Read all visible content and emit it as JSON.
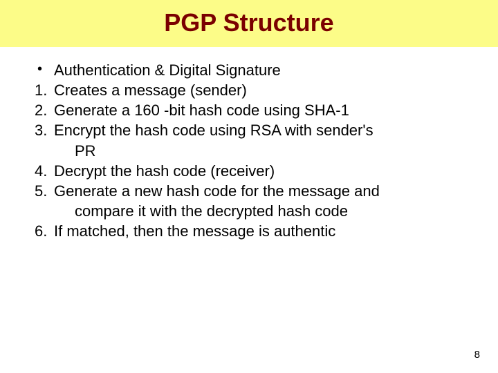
{
  "title": {
    "text": "PGP Structure",
    "color": "#7a0000",
    "background": "#fcfc88",
    "fontsize_pt": 36
  },
  "body": {
    "font_color": "#000000",
    "fontsize_pt": 22,
    "items": [
      {
        "marker": "•",
        "text": "Authentication & Digital Signature",
        "is_bullet": true
      },
      {
        "marker": "1.",
        "text": "Creates a message (sender)"
      },
      {
        "marker": "2.",
        "text": "Generate a 160 -bit hash code using SHA-1"
      },
      {
        "marker": "3.",
        "text": "Encrypt the hash code using RSA with sender's"
      },
      {
        "marker": "",
        "text": "PR",
        "cont": true
      },
      {
        "marker": "4.",
        "text": "Decrypt the hash code (receiver)"
      },
      {
        "marker": "5.",
        "text": "Generate a new hash code for the message and"
      },
      {
        "marker": "",
        "text": "compare it with the decrypted hash code",
        "cont": true
      },
      {
        "marker": "6.",
        "text": "If matched, then the message is authentic"
      }
    ]
  },
  "page_number": "8",
  "colors": {
    "background": "#ffffff",
    "page_num": "#000000"
  }
}
